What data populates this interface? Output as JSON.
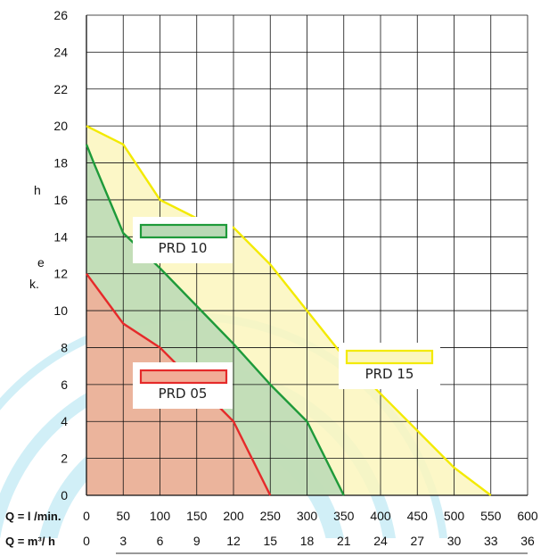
{
  "chart_data": {
    "type": "area",
    "title": "",
    "xlabel": "",
    "ylabel": "",
    "xlim": [
      0,
      600
    ],
    "ylim": [
      0,
      26
    ],
    "grid": true,
    "y_ticks": [
      "0",
      "2",
      "4",
      "6",
      "8",
      "10",
      "12",
      "14",
      "16",
      "18",
      "20",
      "22",
      "24",
      "26"
    ],
    "x_axes": [
      {
        "label": "Q = l /min.",
        "ticks": [
          "0",
          "50",
          "100",
          "150",
          "200",
          "250",
          "300",
          "350",
          "400",
          "450",
          "500",
          "550",
          "600"
        ]
      },
      {
        "label": "Q = m³/ h",
        "ticks": [
          "0",
          "3",
          "6",
          "9",
          "12",
          "15",
          "18",
          "21",
          "24",
          "27",
          "30",
          "33",
          "36"
        ]
      }
    ],
    "series": [
      {
        "name": "PRD 15",
        "color": "#f3ea00",
        "fill": "#fbf6bd",
        "points": [
          [
            0,
            20
          ],
          [
            50,
            19
          ],
          [
            100,
            16
          ],
          [
            150,
            15
          ],
          [
            200,
            14.5
          ],
          [
            250,
            12.5
          ],
          [
            300,
            10
          ],
          [
            350,
            7.5
          ],
          [
            400,
            5.5
          ],
          [
            450,
            3.5
          ],
          [
            500,
            1.5
          ],
          [
            550,
            0
          ]
        ]
      },
      {
        "name": "PRD 10",
        "color": "#1e9a3a",
        "fill": "#b9d9b5",
        "points": [
          [
            0,
            19
          ],
          [
            10,
            18
          ],
          [
            50,
            14.2
          ],
          [
            100,
            12.3
          ],
          [
            200,
            8.2
          ],
          [
            250,
            6
          ],
          [
            300,
            4
          ],
          [
            350,
            0
          ]
        ]
      },
      {
        "name": "PRD 05",
        "color": "#e52a2a",
        "fill": "#f2ad97",
        "points": [
          [
            0,
            12
          ],
          [
            50,
            9.3
          ],
          [
            100,
            8
          ],
          [
            150,
            6
          ],
          [
            200,
            4
          ],
          [
            250,
            0
          ]
        ]
      }
    ],
    "legend": [
      {
        "name": "PRD 10",
        "position": "upper-left"
      },
      {
        "name": "PRD 15",
        "position": "middle-right"
      },
      {
        "name": "PRD 05",
        "position": "lower-left"
      }
    ],
    "left_cutoff_text": [
      "h",
      "e",
      "k."
    ]
  }
}
